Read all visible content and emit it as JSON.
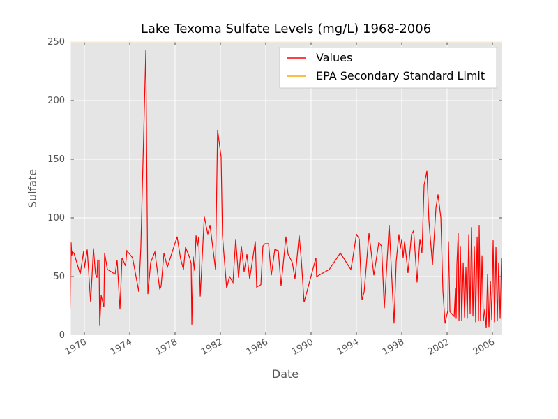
{
  "chart_data": {
    "type": "line",
    "title": "Lake Texoma Sulfate Levels (mg/L) 1968-2006",
    "xlabel": "Date",
    "ylabel": "Sulfate",
    "xlim": [
      1968.77,
      2006.86
    ],
    "ylim": [
      0,
      250
    ],
    "xticks": [
      1970,
      1974,
      1978,
      1982,
      1986,
      1990,
      1994,
      1998,
      2002,
      2006
    ],
    "yticks": [
      0,
      50,
      100,
      150,
      200,
      250
    ],
    "grid": true,
    "legend": "upper right",
    "series": [
      {
        "name": "Values",
        "color": "#ff0000",
        "x": [
          1968.77,
          1968.83,
          1968.89,
          1968.95,
          1969.08,
          1969.63,
          1969.94,
          1970.0,
          1970.25,
          1970.37,
          1970.55,
          1970.8,
          1970.98,
          1971.11,
          1971.17,
          1971.29,
          1971.35,
          1971.48,
          1971.72,
          1971.78,
          1972.03,
          1972.71,
          1972.89,
          1973.14,
          1973.32,
          1973.63,
          1973.75,
          1974.25,
          1974.8,
          1974.98,
          1975.42,
          1975.6,
          1975.85,
          1976.22,
          1976.65,
          1976.77,
          1977.02,
          1977.32,
          1978.18,
          1978.49,
          1978.74,
          1978.92,
          1979.29,
          1979.42,
          1979.48,
          1979.6,
          1979.72,
          1979.85,
          1979.97,
          1980.09,
          1980.22,
          1980.58,
          1980.89,
          1981.08,
          1981.57,
          1981.75,
          1982.06,
          1982.18,
          1982.55,
          1982.8,
          1983.11,
          1983.35,
          1983.6,
          1983.85,
          1984.09,
          1984.34,
          1984.58,
          1985.08,
          1985.2,
          1985.57,
          1985.75,
          1985.94,
          1986.25,
          1986.49,
          1986.8,
          1987.11,
          1987.35,
          1987.78,
          1987.97,
          1988.34,
          1988.58,
          1988.95,
          1989.14,
          1989.38,
          1990.43,
          1990.49,
          1991.6,
          1992.58,
          1993.51,
          1993.69,
          1994.0,
          1994.25,
          1994.49,
          1994.68,
          1995.11,
          1995.54,
          1995.97,
          1996.22,
          1996.46,
          1996.89,
          1997.32,
          1997.51,
          1997.75,
          1997.88,
          1998.0,
          1998.12,
          1998.25,
          1998.55,
          1998.86,
          1999.05,
          1999.35,
          1999.6,
          1999.78,
          1999.97,
          2000.22,
          2000.4,
          2000.71,
          2001.02,
          2001.2,
          2001.45,
          2001.63,
          2001.82,
          2002.06,
          2002.12,
          2002.25,
          2002.62,
          2002.74,
          2002.8,
          2002.86,
          2002.98,
          2003.05,
          2003.17,
          2003.29,
          2003.42,
          2003.54,
          2003.66,
          2003.78,
          2003.91,
          2004.03,
          2004.15,
          2004.28,
          2004.4,
          2004.52,
          2004.65,
          2004.77,
          2004.83,
          2004.95,
          2005.08,
          2005.2,
          2005.32,
          2005.45,
          2005.57,
          2005.69,
          2005.82,
          2005.94,
          2006.06,
          2006.18,
          2006.31,
          2006.43,
          2006.55,
          2006.68,
          2006.8,
          2006.86
        ],
        "values": [
          22,
          79,
          68,
          71,
          70,
          52,
          72,
          57,
          73,
          55,
          28,
          74,
          52,
          49,
          64,
          64,
          8,
          34,
          24,
          70,
          56,
          52,
          64,
          22,
          66,
          59,
          72,
          66,
          37,
          75,
          243,
          35,
          62,
          71,
          39,
          42,
          70,
          58,
          84,
          65,
          56,
          75,
          66,
          61,
          9,
          67,
          55,
          85,
          76,
          84,
          33,
          101,
          86,
          94,
          56,
          175,
          152,
          85,
          40,
          50,
          45,
          82,
          49,
          76,
          54,
          69,
          48,
          80,
          41,
          43,
          76,
          78,
          78,
          51,
          73,
          72,
          42,
          84,
          69,
          62,
          48,
          85,
          64,
          28,
          66,
          50,
          56,
          70,
          56,
          66,
          86,
          82,
          30,
          37,
          87,
          51,
          79,
          76,
          23,
          94,
          10,
          63,
          86,
          74,
          82,
          66,
          80,
          53,
          86,
          89,
          45,
          82,
          70,
          128,
          140,
          97,
          60,
          109,
          120,
          100,
          38,
          10,
          21,
          80,
          20,
          16,
          40,
          14,
          60,
          87,
          12,
          76,
          12,
          62,
          15,
          58,
          14,
          86,
          18,
          92,
          16,
          76,
          11,
          84,
          12,
          94,
          12,
          68,
          12,
          22,
          6,
          52,
          7,
          46,
          13,
          81,
          11,
          75,
          12,
          62,
          14,
          66,
          34
        ]
      },
      {
        "name": "EPA Secondary Standard Limit",
        "color": "#ffa500",
        "x": [
          1968.77,
          2006.86
        ],
        "values": [
          250,
          250
        ]
      }
    ]
  }
}
